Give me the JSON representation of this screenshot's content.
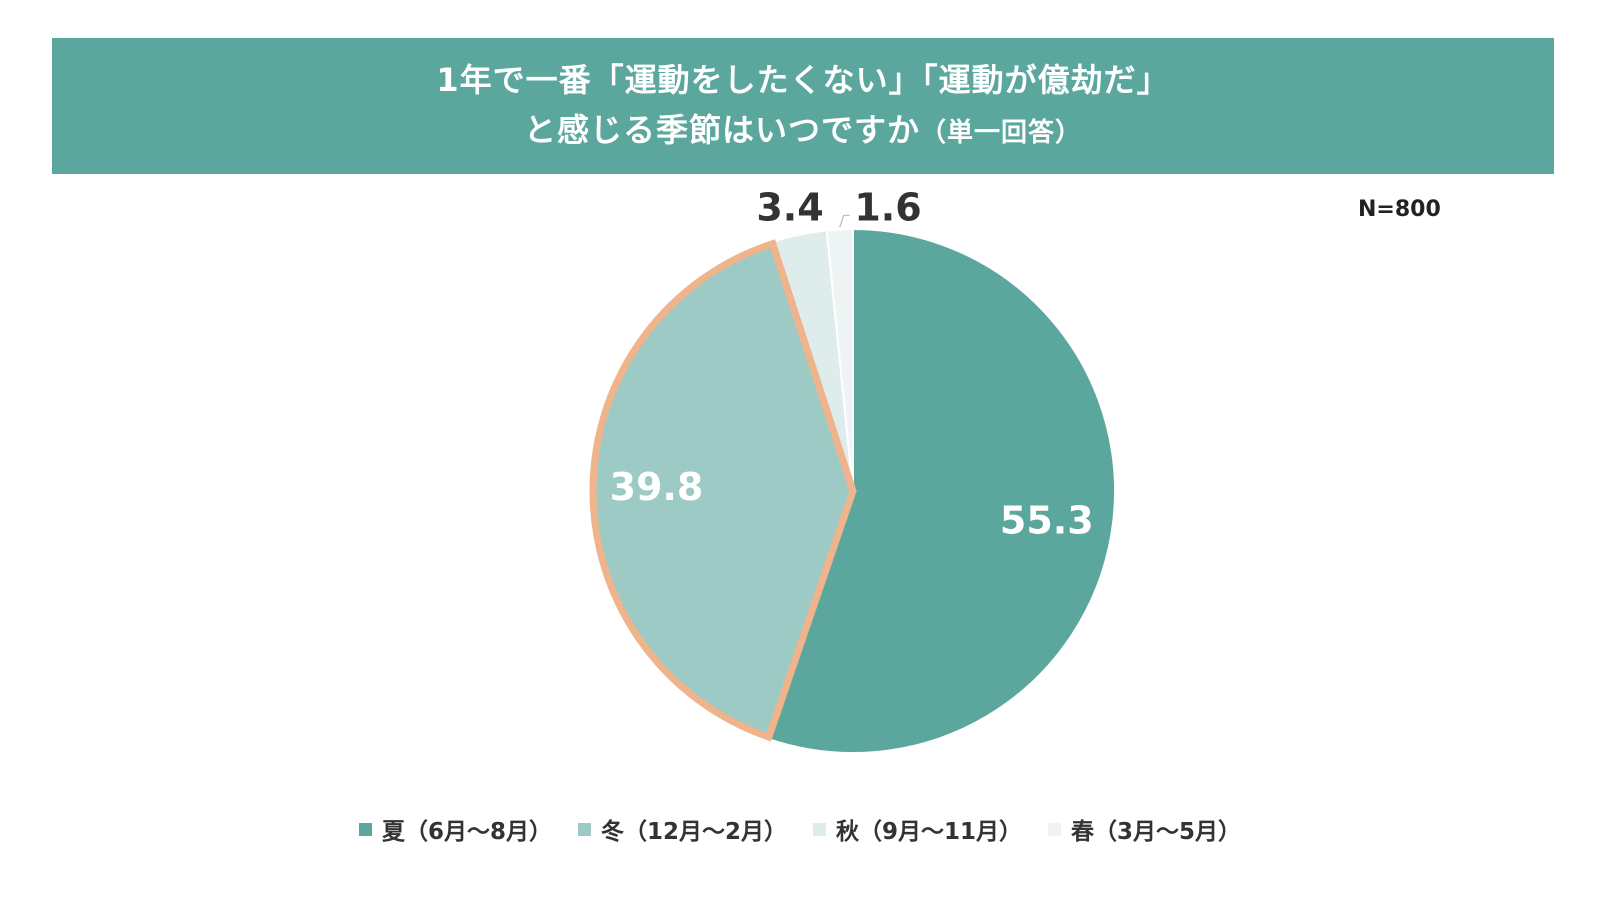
{
  "title": {
    "line1": "1年で一番「運動をしたくない」「運動が億劫だ」",
    "line2_main": "と感じる季節はいつですか",
    "line2_sub": "（単一回答）"
  },
  "sample_size": "N=800",
  "colors": {
    "banner": "#5ba79e",
    "highlight_outline": "#f0b48c"
  },
  "chart_data": {
    "type": "pie",
    "title": "1年で一番「運動をしたくない」「運動が億劫だ」と感じる季節はいつですか（単一回答）",
    "unit": "%",
    "start_angle_deg": 0,
    "direction": "clockwise",
    "slices": [
      {
        "label": "夏（6月〜8月）",
        "value": 55.3,
        "display": "55.3",
        "color": "#5ba79e",
        "label_position": "inside",
        "label_color": "#ffffff",
        "highlighted": false
      },
      {
        "label": "冬（12月〜2月）",
        "value": 39.8,
        "display": "39.8",
        "color": "#9ecac5",
        "label_position": "inside",
        "label_color": "#ffffff",
        "highlighted": true
      },
      {
        "label": "秋（9月〜11月）",
        "value": 3.4,
        "display": "3.4",
        "color": "#deedeb",
        "label_position": "outside",
        "label_color": "#333333",
        "highlighted": false
      },
      {
        "label": "春（3月〜5月）",
        "value": 1.6,
        "display": "1.6",
        "color": "#eef4f3",
        "label_position": "outside",
        "label_color": "#333333",
        "highlighted": false
      }
    ],
    "legend_position": "bottom"
  }
}
